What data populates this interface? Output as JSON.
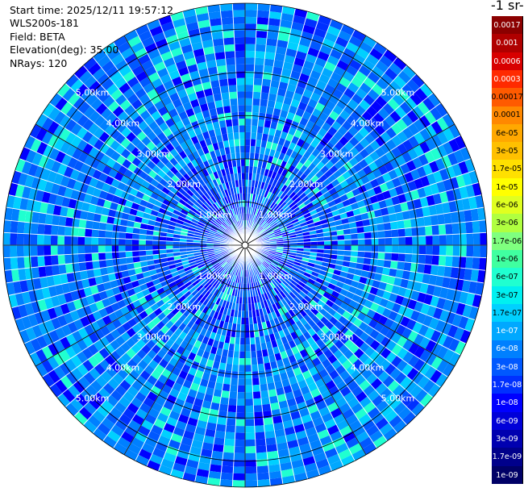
{
  "info": {
    "start_time": "Start time: 2025/12/11 19:57:12",
    "instrument": "WLS200s-181",
    "field": "Field: BETA",
    "elevation": "Elevation(deg): 35.00",
    "nrays": "NRays: 120"
  },
  "colorbar": {
    "title_fragment": "-1 sr-",
    "ticks": [
      "0.0017",
      "0.001",
      "0.0006",
      "0.0003",
      "0.00017",
      "0.0001",
      "6e-05",
      "3e-05",
      "1.7e-05",
      "1e-05",
      "6e-06",
      "3e-06",
      "1.7e-06",
      "1e-06",
      "6e-07",
      "3e-07",
      "1.7e-07",
      "1e-07",
      "6e-08",
      "3e-08",
      "1.7e-08",
      "1e-08",
      "6e-09",
      "3e-09",
      "1.7e-09",
      "1e-09"
    ],
    "colors": [
      "#8b0000",
      "#b00000",
      "#d80000",
      "#ff2a00",
      "#ff5a00",
      "#ff8800",
      "#ffa800",
      "#ffc000",
      "#ffe000",
      "#ffff00",
      "#e0ff20",
      "#b0ff40",
      "#7fff7f",
      "#40ffa0",
      "#20ffd0",
      "#00f0f0",
      "#00d0ff",
      "#00a8ff",
      "#0080ff",
      "#0058ff",
      "#0030ff",
      "#0000ff",
      "#0000d8",
      "#0000b0",
      "#00008b",
      "#000066"
    ],
    "dark_text": [
      "0.00017",
      "0.0001",
      "6e-05",
      "3e-05",
      "1.7e-05",
      "1e-05",
      "6e-06",
      "3e-06",
      "1.7e-06",
      "1e-06",
      "6e-07",
      "3e-07",
      "1.7e-07"
    ]
  },
  "chart_data": {
    "type": "heatmap",
    "projection": "polar PPI scan",
    "field": "BETA",
    "elevation_deg": 35.0,
    "n_rays": 120,
    "range_rings_km": [
      1.0,
      2.0,
      3.0,
      4.0,
      5.0
    ],
    "range_ring_labels": [
      "1.00km",
      "2.00km",
      "3.00km",
      "4.00km",
      "5.00km"
    ],
    "max_range_km": 5.6,
    "color_scale": "logarithmic",
    "value_range": [
      1e-09,
      0.0017
    ],
    "dominant_values": "mostly 1e-08 to 1e-07 (blue), occasional 3e-07 (cyan) patches"
  }
}
